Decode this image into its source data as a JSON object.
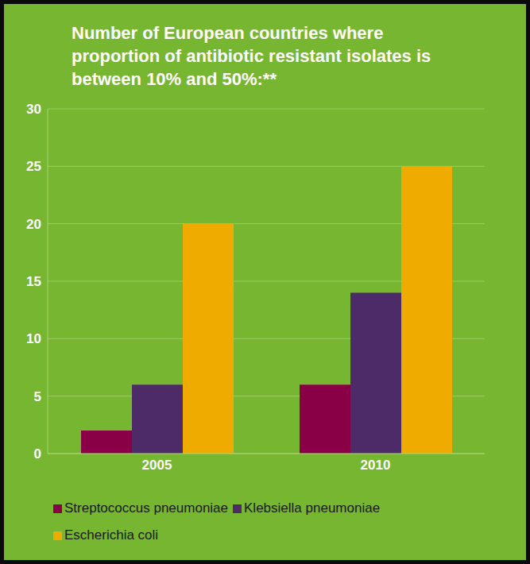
{
  "chart_data": {
    "type": "bar",
    "title": "Number of European countries where proportion of antibiotic resistant isolates is between 10% and 50%:**",
    "categories": [
      "2005",
      "2010"
    ],
    "series": [
      {
        "name": "Streptococcus pneumoniae",
        "color": "#8a0047",
        "values": [
          2,
          6
        ]
      },
      {
        "name": "Klebsiella pneumoniae",
        "color": "#4d2b68",
        "values": [
          6,
          14
        ]
      },
      {
        "name": "Escherichia coli",
        "color": "#f0ab00",
        "values": [
          20,
          25
        ]
      }
    ],
    "ylim": [
      0,
      30
    ],
    "yticks": [
      0,
      5,
      10,
      15,
      20,
      25,
      30
    ],
    "grid": true,
    "legend": "bottom"
  }
}
